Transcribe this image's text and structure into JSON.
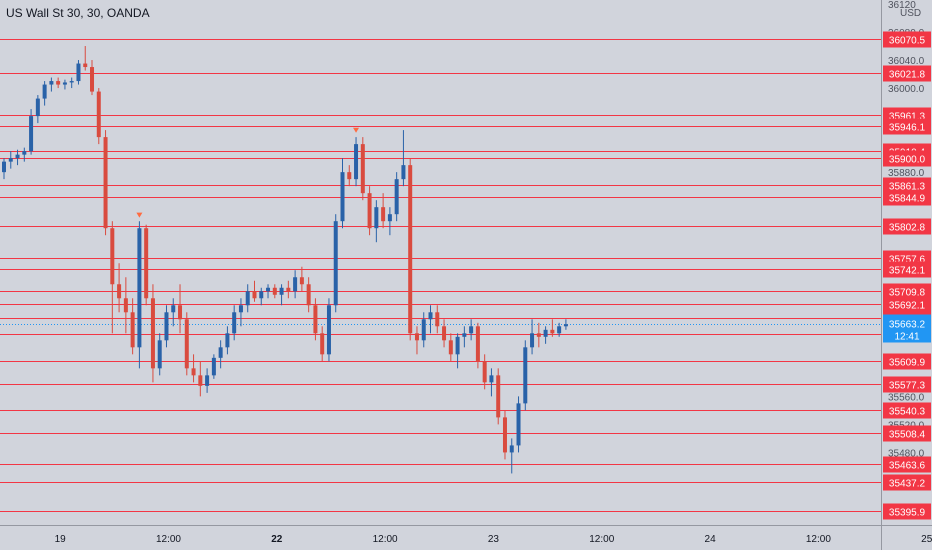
{
  "chart_data": {
    "type": "candlestick",
    "title": "US Wall St 30, 30, OANDA",
    "currency": "USD",
    "colors": {
      "background": "#d1d4dc",
      "up": "#2962a8",
      "down": "#d94b3f",
      "level_line": "#f23645",
      "label_bg": "#f23645",
      "price_line": "#2196f3",
      "axis_text": "#50535e"
    },
    "y_range": [
      35375,
      36090
    ],
    "y_ticks": [
      "36120",
      "36080.0",
      "36040.0",
      "36000.0",
      "35880.0",
      "35560.0",
      "35520.0",
      "35480.0"
    ],
    "x_ticks": [
      {
        "label": "19",
        "bold": false,
        "bar": 8
      },
      {
        "label": "12:00",
        "bold": false,
        "bar": 24
      },
      {
        "label": "22",
        "bold": true,
        "bar": 40
      },
      {
        "label": "12:00",
        "bold": false,
        "bar": 56
      },
      {
        "label": "23",
        "bold": false,
        "bar": 72
      },
      {
        "label": "12:00",
        "bold": false,
        "bar": 88
      },
      {
        "label": "24",
        "bold": false,
        "bar": 104
      },
      {
        "label": "12:00",
        "bold": false,
        "bar": 120
      },
      {
        "label": "25",
        "bold": false,
        "bar": 136
      }
    ],
    "levels": [
      "36070.5",
      "36021.8",
      "35961.3",
      "35946.1",
      "35910.4",
      "35900.0",
      "35861.3",
      "35844.9",
      "35802.8",
      "35757.6",
      "35742.1",
      "35709.8",
      "35692.1",
      "35671.6",
      "35649.2",
      "35609.9",
      "35577.3",
      "35540.3",
      "35508.4",
      "35463.6",
      "35437.2",
      "35395.9"
    ],
    "current_price": {
      "value": "35663.2",
      "countdown": "12:41"
    },
    "markers": [
      {
        "bar": 20,
        "price": 35818
      },
      {
        "bar": 52,
        "price": 35939
      }
    ],
    "ohlc": [
      [
        35880,
        35900,
        35870,
        35895
      ],
      [
        35895,
        35910,
        35885,
        35900
      ],
      [
        35900,
        35912,
        35890,
        35905
      ],
      [
        35905,
        35915,
        35895,
        35910
      ],
      [
        35910,
        35970,
        35905,
        35960
      ],
      [
        35960,
        35990,
        35950,
        35985
      ],
      [
        35985,
        36010,
        35975,
        36005
      ],
      [
        36005,
        36015,
        35995,
        36010
      ],
      [
        36010,
        36015,
        36000,
        36005
      ],
      [
        36005,
        36012,
        35998,
        36008
      ],
      [
        36008,
        36015,
        36000,
        36010
      ],
      [
        36010,
        36040,
        36005,
        36035
      ],
      [
        36035,
        36060,
        36025,
        36030
      ],
      [
        36030,
        36040,
        35990,
        35995
      ],
      [
        35995,
        36000,
        35920,
        35930
      ],
      [
        35930,
        35940,
        35790,
        35800
      ],
      [
        35800,
        35810,
        35650,
        35720
      ],
      [
        35720,
        35750,
        35680,
        35700
      ],
      [
        35700,
        35730,
        35650,
        35680
      ],
      [
        35680,
        35700,
        35620,
        35630
      ],
      [
        35630,
        35810,
        35600,
        35800
      ],
      [
        35800,
        35805,
        35690,
        35700
      ],
      [
        35700,
        35720,
        35580,
        35600
      ],
      [
        35600,
        35650,
        35590,
        35640
      ],
      [
        35640,
        35690,
        35630,
        35680
      ],
      [
        35680,
        35700,
        35660,
        35690
      ],
      [
        35690,
        35720,
        35650,
        35670
      ],
      [
        35670,
        35680,
        35590,
        35600
      ],
      [
        35600,
        35620,
        35580,
        35590
      ],
      [
        35590,
        35610,
        35560,
        35575
      ],
      [
        35575,
        35600,
        35565,
        35590
      ],
      [
        35590,
        35620,
        35585,
        35615
      ],
      [
        35615,
        35640,
        35600,
        35630
      ],
      [
        35630,
        35660,
        35620,
        35650
      ],
      [
        35650,
        35690,
        35640,
        35680
      ],
      [
        35680,
        35700,
        35660,
        35690
      ],
      [
        35690,
        35720,
        35680,
        35710
      ],
      [
        35710,
        35725,
        35695,
        35700
      ],
      [
        35700,
        35715,
        35690,
        35710
      ],
      [
        35710,
        35720,
        35700,
        35715
      ],
      [
        35715,
        35720,
        35700,
        35705
      ],
      [
        35705,
        35720,
        35690,
        35715
      ],
      [
        35715,
        35725,
        35700,
        35710
      ],
      [
        35710,
        35740,
        35700,
        35730
      ],
      [
        35730,
        35745,
        35710,
        35720
      ],
      [
        35720,
        35730,
        35680,
        35690
      ],
      [
        35690,
        35700,
        35640,
        35650
      ],
      [
        35650,
        35660,
        35610,
        35620
      ],
      [
        35620,
        35700,
        35610,
        35690
      ],
      [
        35690,
        35820,
        35680,
        35810
      ],
      [
        35810,
        35900,
        35800,
        35880
      ],
      [
        35880,
        35890,
        35860,
        35870
      ],
      [
        35870,
        35930,
        35860,
        35920
      ],
      [
        35920,
        35930,
        35840,
        35850
      ],
      [
        35850,
        35860,
        35790,
        35800
      ],
      [
        35800,
        35840,
        35780,
        35830
      ],
      [
        35830,
        35850,
        35800,
        35810
      ],
      [
        35810,
        35830,
        35790,
        35820
      ],
      [
        35820,
        35880,
        35810,
        35870
      ],
      [
        35870,
        35940,
        35860,
        35890
      ],
      [
        35890,
        35900,
        35640,
        35650
      ],
      [
        35650,
        35660,
        35620,
        35640
      ],
      [
        35640,
        35680,
        35630,
        35670
      ],
      [
        35670,
        35690,
        35650,
        35680
      ],
      [
        35680,
        35690,
        35650,
        35660
      ],
      [
        35660,
        35670,
        35630,
        35640
      ],
      [
        35640,
        35650,
        35610,
        35620
      ],
      [
        35620,
        35650,
        35600,
        35645
      ],
      [
        35645,
        35660,
        35630,
        35650
      ],
      [
        35650,
        35670,
        35640,
        35660
      ],
      [
        35660,
        35665,
        35600,
        35610
      ],
      [
        35610,
        35620,
        35570,
        35580
      ],
      [
        35580,
        35600,
        35560,
        35590
      ],
      [
        35590,
        35600,
        35520,
        35530
      ],
      [
        35530,
        35540,
        35470,
        35480
      ],
      [
        35480,
        35500,
        35450,
        35490
      ],
      [
        35490,
        35560,
        35480,
        35550
      ],
      [
        35550,
        35640,
        35540,
        35630
      ],
      [
        35630,
        35670,
        35620,
        35650
      ],
      [
        35650,
        35665,
        35630,
        35645
      ],
      [
        35645,
        35660,
        35635,
        35655
      ],
      [
        35655,
        35670,
        35645,
        35650
      ],
      [
        35650,
        35665,
        35645,
        35660
      ],
      [
        35660,
        35670,
        35655,
        35663
      ]
    ]
  }
}
